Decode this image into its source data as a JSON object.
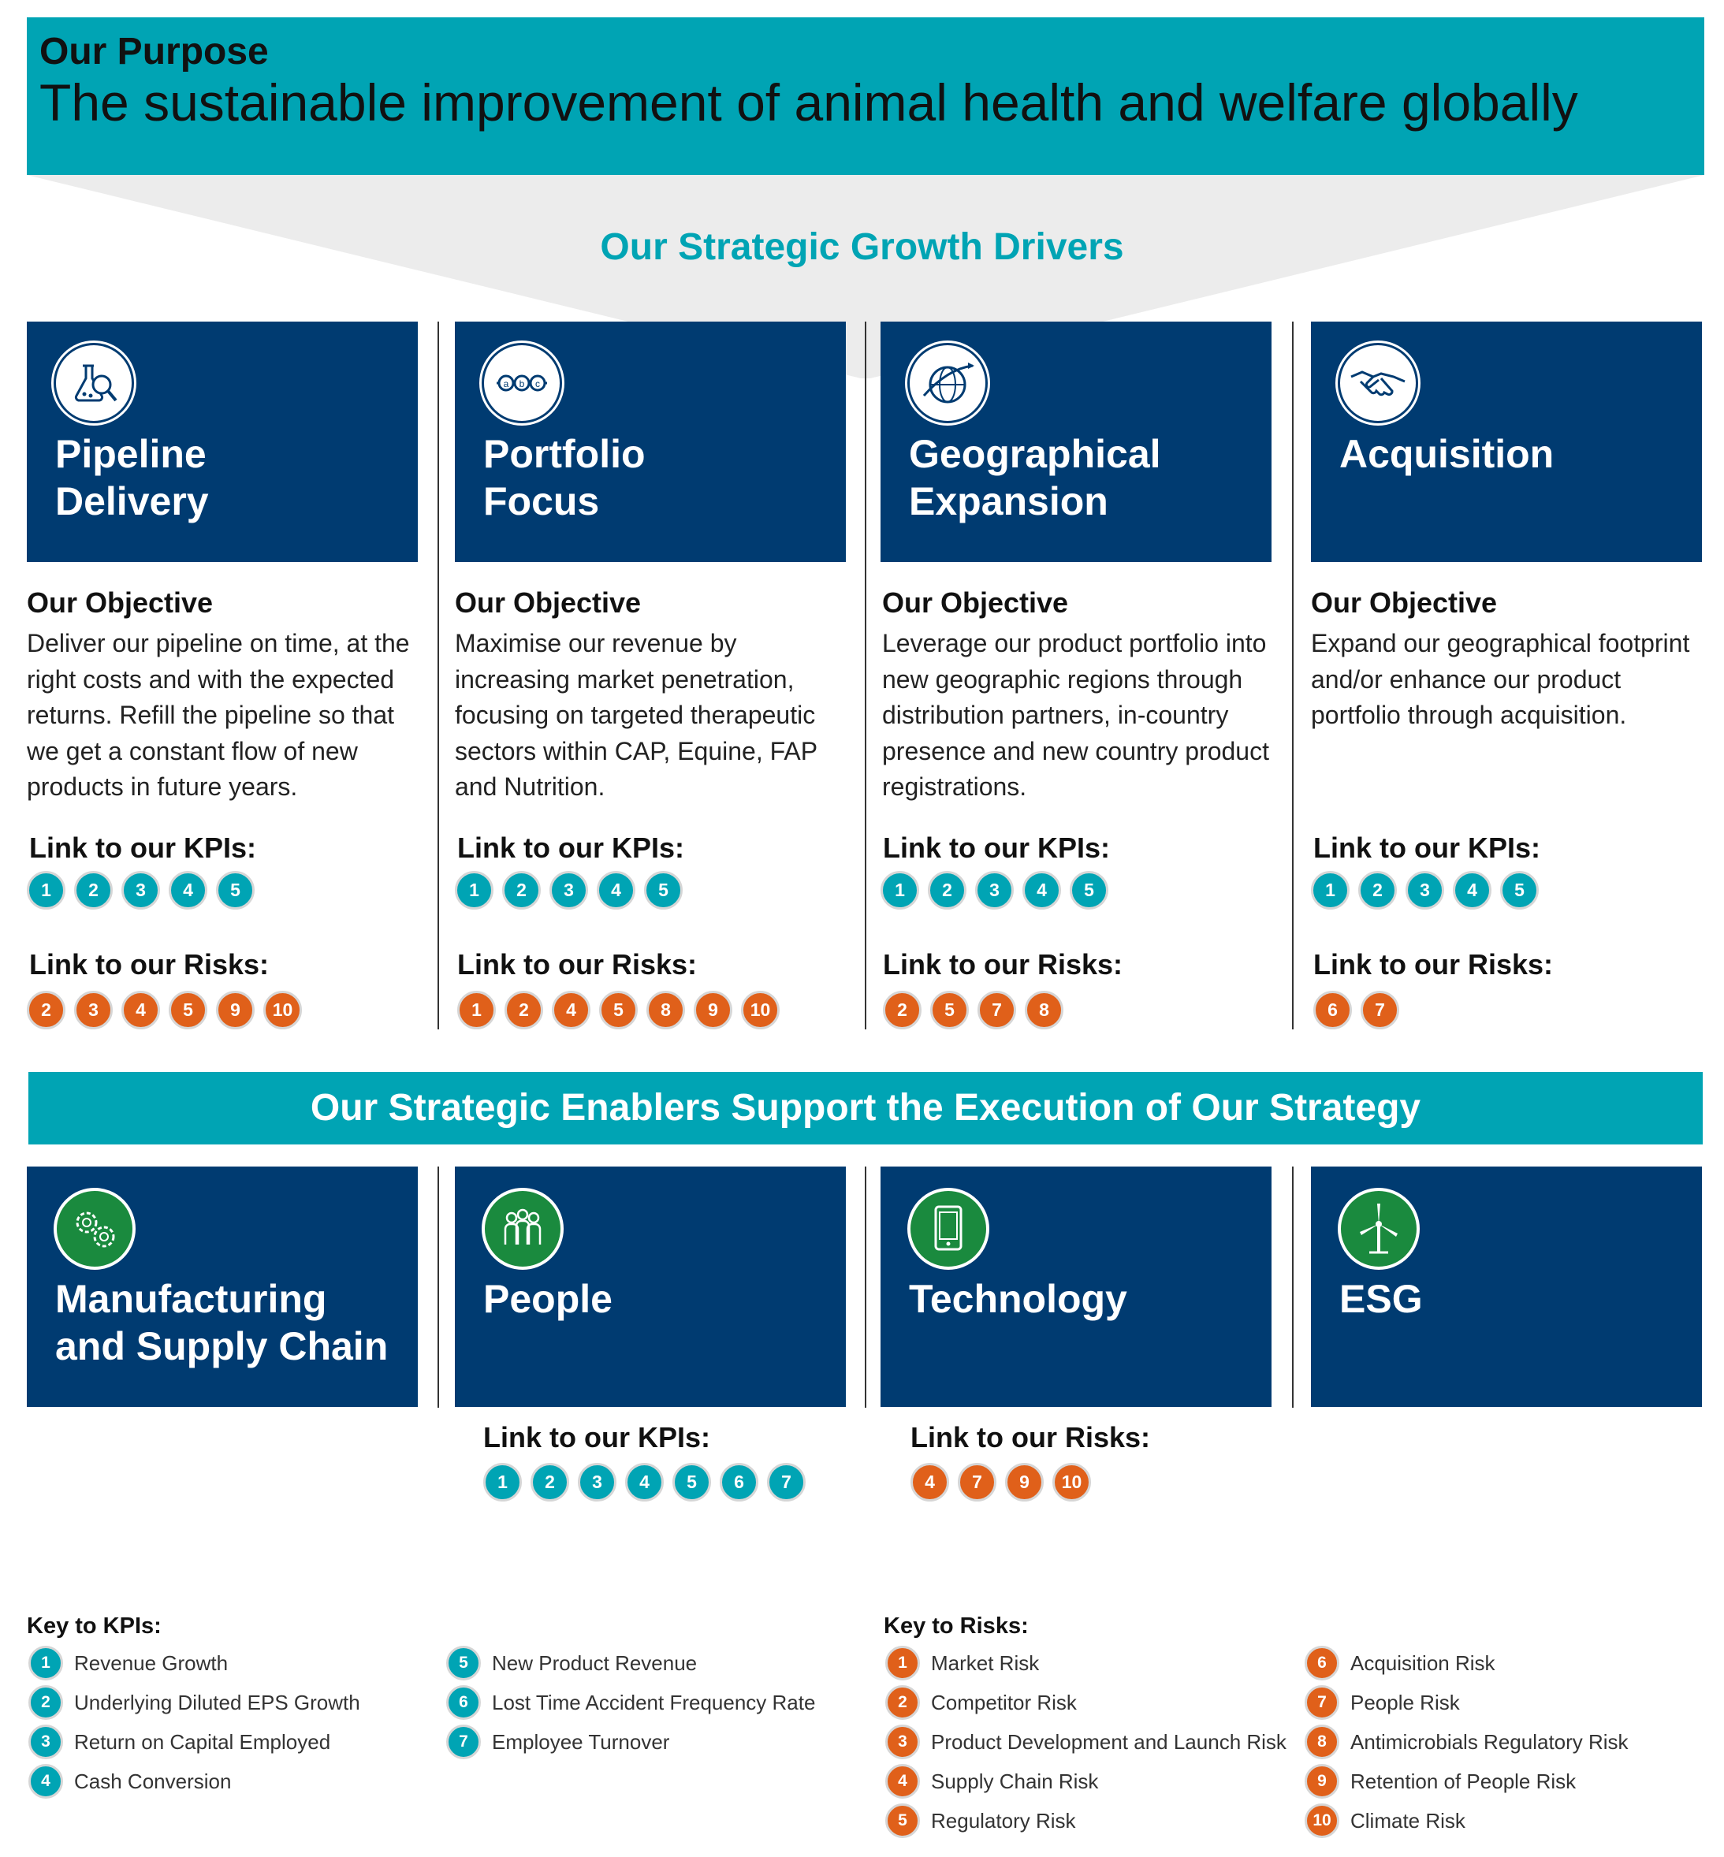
{
  "purpose": {
    "label": "Our Purpose",
    "text": "The sustainable improvement of animal health and welfare globally"
  },
  "drivers": {
    "title": "Our Strategic Growth Drivers",
    "objective_label": "Our Objective",
    "kpi_label": "Link to our KPIs:",
    "risk_label": "Link to our Risks:",
    "items": [
      {
        "title_line1": "Pipeline",
        "title_line2": "Delivery",
        "icon": "flask-magnifier-icon",
        "objective": "Deliver our pipeline on time, at the right costs and with the expected returns. Refill the pipeline so that we get a constant flow of new products in future years.",
        "kpis": [
          "1",
          "2",
          "3",
          "4",
          "5"
        ],
        "risks": [
          "2",
          "3",
          "4",
          "5",
          "9",
          "10"
        ]
      },
      {
        "title_line1": "Portfolio",
        "title_line2": "Focus",
        "icon": "abc-chain-icon",
        "objective": "Maximise our revenue by increasing market penetration, focusing on targeted therapeutic sectors within CAP, Equine, FAP and Nutrition.",
        "kpis": [
          "1",
          "2",
          "3",
          "4",
          "5"
        ],
        "risks": [
          "1",
          "2",
          "4",
          "5",
          "8",
          "9",
          "10"
        ]
      },
      {
        "title_line1": "Geographical",
        "title_line2": "Expansion",
        "icon": "globe-plane-icon",
        "objective": "Leverage our product portfolio into new geographic regions through distribution partners, in-country presence and new country product registrations.",
        "kpis": [
          "1",
          "2",
          "3",
          "4",
          "5"
        ],
        "risks": [
          "2",
          "5",
          "7",
          "8"
        ]
      },
      {
        "title_line1": "Acquisition",
        "title_line2": "",
        "icon": "handshake-icon",
        "objective": "Expand our geographical footprint and/or enhance our product portfolio through acquisition.",
        "kpis": [
          "1",
          "2",
          "3",
          "4",
          "5"
        ],
        "risks": [
          "6",
          "7"
        ]
      }
    ]
  },
  "enablers": {
    "title": "Our Strategic Enablers Support the Execution of Our Strategy",
    "items": [
      {
        "title_line1": "Manufacturing",
        "title_line2": "and Supply Chain",
        "icon": "gears-icon"
      },
      {
        "title_line1": "People",
        "title_line2": "",
        "icon": "people-icon"
      },
      {
        "title_line1": "Technology",
        "title_line2": "",
        "icon": "tablet-icon"
      },
      {
        "title_line1": "ESG",
        "title_line2": "",
        "icon": "wind-turbine-icon"
      }
    ],
    "people_kpi_label": "Link to our KPIs:",
    "people_kpis": [
      "1",
      "2",
      "3",
      "4",
      "5",
      "6",
      "7"
    ],
    "technology_risk_label": "Link to our Risks:",
    "technology_risks": [
      "4",
      "7",
      "9",
      "10"
    ]
  },
  "key_kpis": {
    "title": "Key to KPIs:",
    "items": [
      {
        "num": "1",
        "label": "Revenue Growth"
      },
      {
        "num": "2",
        "label": "Underlying Diluted EPS Growth"
      },
      {
        "num": "3",
        "label": "Return on Capital Employed"
      },
      {
        "num": "4",
        "label": "Cash Conversion"
      },
      {
        "num": "5",
        "label": "New Product Revenue"
      },
      {
        "num": "6",
        "label": "Lost Time Accident Frequency Rate"
      },
      {
        "num": "7",
        "label": "Employee Turnover"
      }
    ]
  },
  "key_risks": {
    "title": "Key to Risks:",
    "items": [
      {
        "num": "1",
        "label": "Market Risk"
      },
      {
        "num": "2",
        "label": "Competitor Risk"
      },
      {
        "num": "3",
        "label": "Product Development and Launch Risk"
      },
      {
        "num": "4",
        "label": "Supply Chain Risk"
      },
      {
        "num": "5",
        "label": "Regulatory Risk"
      },
      {
        "num": "6",
        "label": "Acquisition Risk"
      },
      {
        "num": "7",
        "label": "People Risk"
      },
      {
        "num": "8",
        "label": "Antimicrobials Regulatory Risk"
      },
      {
        "num": "9",
        "label": "Retention of People Risk"
      },
      {
        "num": "10",
        "label": "Climate Risk"
      }
    ]
  },
  "colors": {
    "teal": "#00A4B4",
    "navy": "#003B71",
    "orange": "#E0601A",
    "green": "#1A8A3E"
  }
}
